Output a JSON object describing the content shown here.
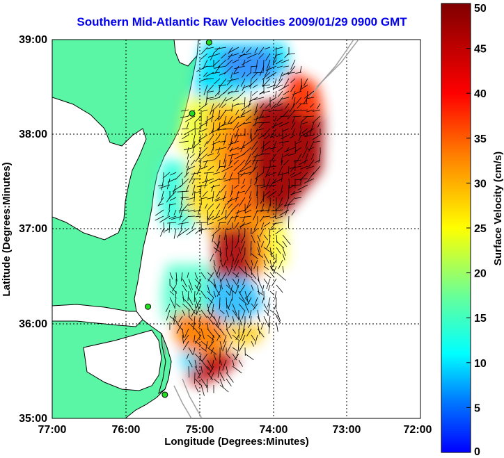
{
  "title": "Southern Mid-Atlantic Raw Velocities 2009/01/29 0900 GMT",
  "map": {
    "xlabel": "Longitude (Degrees:Minutes)",
    "ylabel": "Latitude (Degrees:Minutes)",
    "x_ticks": [
      "77:00",
      "76:00",
      "75:00",
      "74:00",
      "73:00",
      "72:00"
    ],
    "y_ticks": [
      "39:00",
      "38:00",
      "37:00",
      "36:00",
      "35:00"
    ],
    "lon_range": [
      -77,
      -72
    ],
    "lat_range": [
      35,
      39
    ],
    "colors": {
      "land": "#5af5a5",
      "water": "#ffffff",
      "coast": "#000000",
      "bathymetry": "#a0a0a0",
      "grid": "#000000",
      "stations": "#22dd22",
      "vectors": "#000000"
    },
    "stations": [
      {
        "lon": -74.87,
        "lat": 38.97
      },
      {
        "lon": -75.1,
        "lat": 38.22
      },
      {
        "lon": -75.7,
        "lat": 36.18
      },
      {
        "lon": -75.47,
        "lat": 35.25
      }
    ]
  },
  "colorbar": {
    "label": "Surface Velocity (cm/s)",
    "ticks": [
      "0",
      "5",
      "10",
      "15",
      "20",
      "25",
      "30",
      "35",
      "40",
      "45",
      "50"
    ],
    "range": [
      0,
      50
    ],
    "colormap": [
      "#0000ff",
      "#00a0ff",
      "#00ffff",
      "#80ff80",
      "#ffff00",
      "#ff8000",
      "#ff0000",
      "#800000"
    ]
  }
}
